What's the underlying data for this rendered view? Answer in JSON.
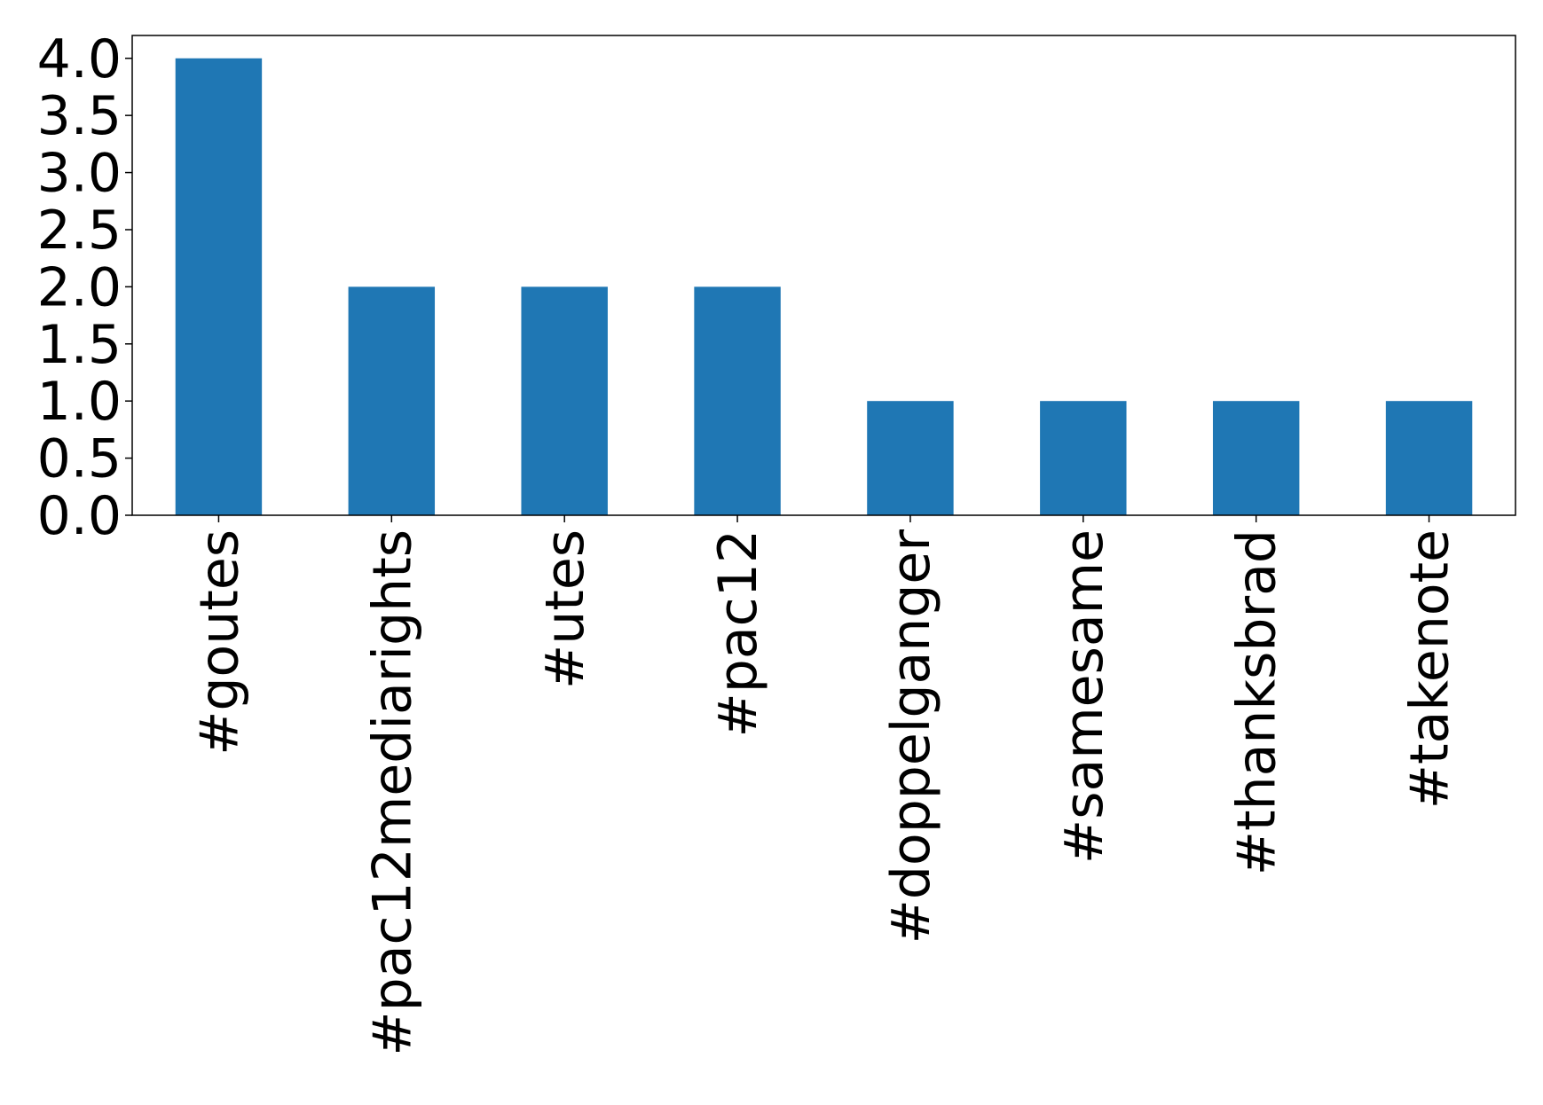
{
  "chart_data": {
    "type": "bar",
    "categories": [
      "#goutes",
      "#pac12mediarights",
      "#utes",
      "#pac12",
      "#doppelganger",
      "#samesame",
      "#thanksbrad",
      "#takenote"
    ],
    "values": [
      4,
      2,
      2,
      2,
      1,
      1,
      1,
      1
    ],
    "color": "#1f77b4",
    "ylim": [
      0,
      4.2
    ],
    "yticks": [
      {
        "value": 0,
        "label": "0.0"
      },
      {
        "value": 0.5,
        "label": "0.5"
      },
      {
        "value": 1,
        "label": "1.0"
      },
      {
        "value": 1.5,
        "label": "1.5"
      },
      {
        "value": 2,
        "label": "2.0"
      },
      {
        "value": 2.5,
        "label": "2.5"
      },
      {
        "value": 3,
        "label": "3.0"
      },
      {
        "value": 3.5,
        "label": "3.5"
      },
      {
        "value": 4,
        "label": "4.0"
      }
    ],
    "grid": false
  }
}
